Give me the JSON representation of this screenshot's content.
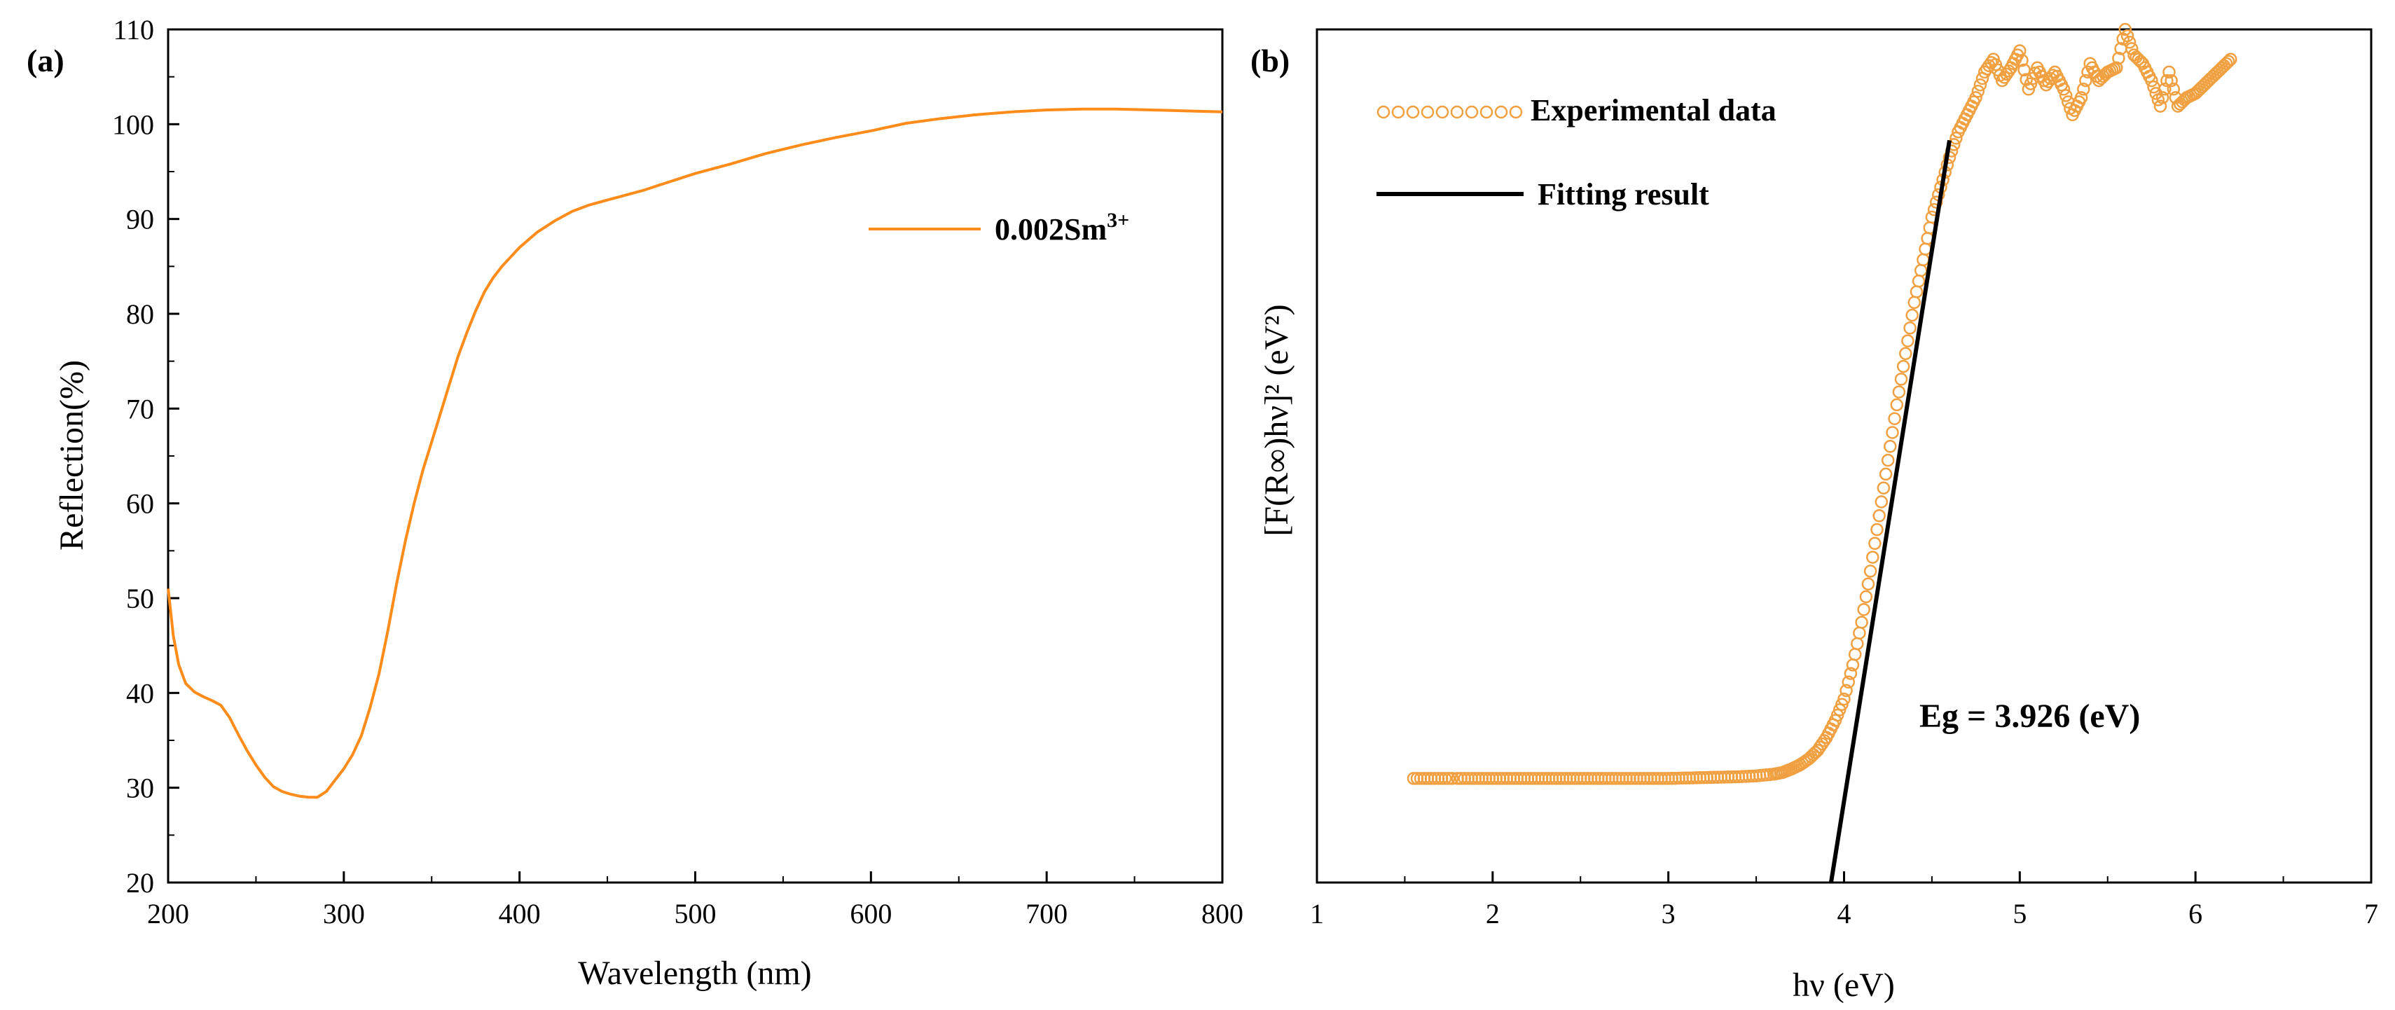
{
  "chart_data": [
    {
      "panel_label": "(a)",
      "type": "line",
      "title": "",
      "xlabel": "Wavelength (nm)",
      "ylabel": "Reflection(%)",
      "xlim": [
        200,
        800
      ],
      "ylim": [
        20,
        110
      ],
      "xticks": [
        200,
        300,
        400,
        500,
        600,
        700,
        800
      ],
      "yticks": [
        20,
        30,
        40,
        50,
        60,
        70,
        80,
        90,
        100,
        110
      ],
      "grid": false,
      "legend_position": "top-right",
      "color": "#FF8C1A",
      "series": [
        {
          "name": "0.002Sm",
          "name_superscript": "3+",
          "x": [
            200,
            203,
            206,
            210,
            215,
            220,
            225,
            230,
            235,
            240,
            245,
            250,
            255,
            260,
            265,
            270,
            275,
            280,
            285,
            290,
            295,
            300,
            305,
            310,
            315,
            320,
            325,
            330,
            335,
            340,
            345,
            350,
            355,
            360,
            365,
            370,
            375,
            380,
            385,
            390,
            395,
            400,
            410,
            420,
            430,
            440,
            450,
            460,
            470,
            480,
            490,
            500,
            520,
            540,
            560,
            580,
            600,
            620,
            640,
            660,
            680,
            700,
            720,
            740,
            760,
            780,
            800
          ],
          "values": [
            51,
            46,
            43,
            41,
            40.1,
            39.6,
            39.2,
            38.7,
            37.4,
            35.6,
            33.9,
            32.4,
            31.1,
            30.1,
            29.6,
            29.3,
            29.1,
            29.0,
            29.0,
            29.6,
            30.8,
            32.0,
            33.5,
            35.5,
            38.5,
            42.0,
            46.5,
            51.5,
            56.0,
            60.0,
            63.5,
            66.5,
            69.5,
            72.5,
            75.5,
            78.0,
            80.3,
            82.3,
            83.8,
            85.0,
            86.0,
            87.0,
            88.6,
            89.8,
            90.8,
            91.5,
            92.0,
            92.5,
            93.0,
            93.6,
            94.2,
            94.8,
            95.8,
            96.9,
            97.8,
            98.6,
            99.3,
            100.1,
            100.6,
            101.0,
            101.3,
            101.5,
            101.6,
            101.6,
            101.5,
            101.4,
            101.3
          ]
        }
      ]
    },
    {
      "panel_label": "(b)",
      "type": "scatter",
      "title": "",
      "xlabel": "hν  (eV)",
      "ylabel": "[F(R∞)hν]² (eV²)",
      "xlim": [
        1,
        7
      ],
      "ylim": [
        0,
        10
      ],
      "xticks": [
        1,
        2,
        3,
        4,
        5,
        6,
        7
      ],
      "yticks": [],
      "grid": false,
      "legend_position": "top-left",
      "annotation": "Eg = 3.926  (eV)",
      "series": [
        {
          "name": "Experimental data",
          "kind": "scatter",
          "marker": "open-circle",
          "color": "#F0A040",
          "x": [
            1.55,
            1.8,
            2.0,
            2.2,
            2.4,
            2.6,
            2.8,
            3.0,
            3.2,
            3.4,
            3.5,
            3.6,
            3.65,
            3.7,
            3.75,
            3.8,
            3.85,
            3.9,
            3.95,
            4.0,
            4.05,
            4.1,
            4.15,
            4.2,
            4.25,
            4.3,
            4.35,
            4.4,
            4.45,
            4.5,
            4.55,
            4.6,
            4.65,
            4.7,
            4.75,
            4.8,
            4.85,
            4.9,
            4.95,
            5.0,
            5.05,
            5.1,
            5.15,
            5.2,
            5.25,
            5.3,
            5.35,
            5.4,
            5.45,
            5.5,
            5.55,
            5.6,
            5.65,
            5.7,
            5.75,
            5.8,
            5.85,
            5.9,
            5.95,
            6.0,
            6.05,
            6.1,
            6.15,
            6.2
          ],
          "values": [
            1.22,
            1.22,
            1.22,
            1.22,
            1.22,
            1.22,
            1.22,
            1.22,
            1.23,
            1.24,
            1.25,
            1.27,
            1.29,
            1.33,
            1.38,
            1.45,
            1.55,
            1.7,
            1.9,
            2.15,
            2.55,
            3.05,
            3.65,
            4.3,
            4.95,
            5.6,
            6.2,
            6.8,
            7.3,
            7.8,
            8.15,
            8.5,
            8.8,
            9.0,
            9.2,
            9.5,
            9.65,
            9.4,
            9.55,
            9.75,
            9.3,
            9.55,
            9.35,
            9.5,
            9.3,
            9.0,
            9.2,
            9.6,
            9.4,
            9.5,
            9.55,
            10.0,
            9.7,
            9.6,
            9.4,
            9.1,
            9.5,
            9.1,
            9.2,
            9.25,
            9.35,
            9.45,
            9.55,
            9.65
          ]
        },
        {
          "name": "Fitting result",
          "kind": "line",
          "color": "#000000",
          "x": [
            3.926,
            4.6
          ],
          "values": [
            0,
            8.7
          ]
        }
      ]
    }
  ]
}
